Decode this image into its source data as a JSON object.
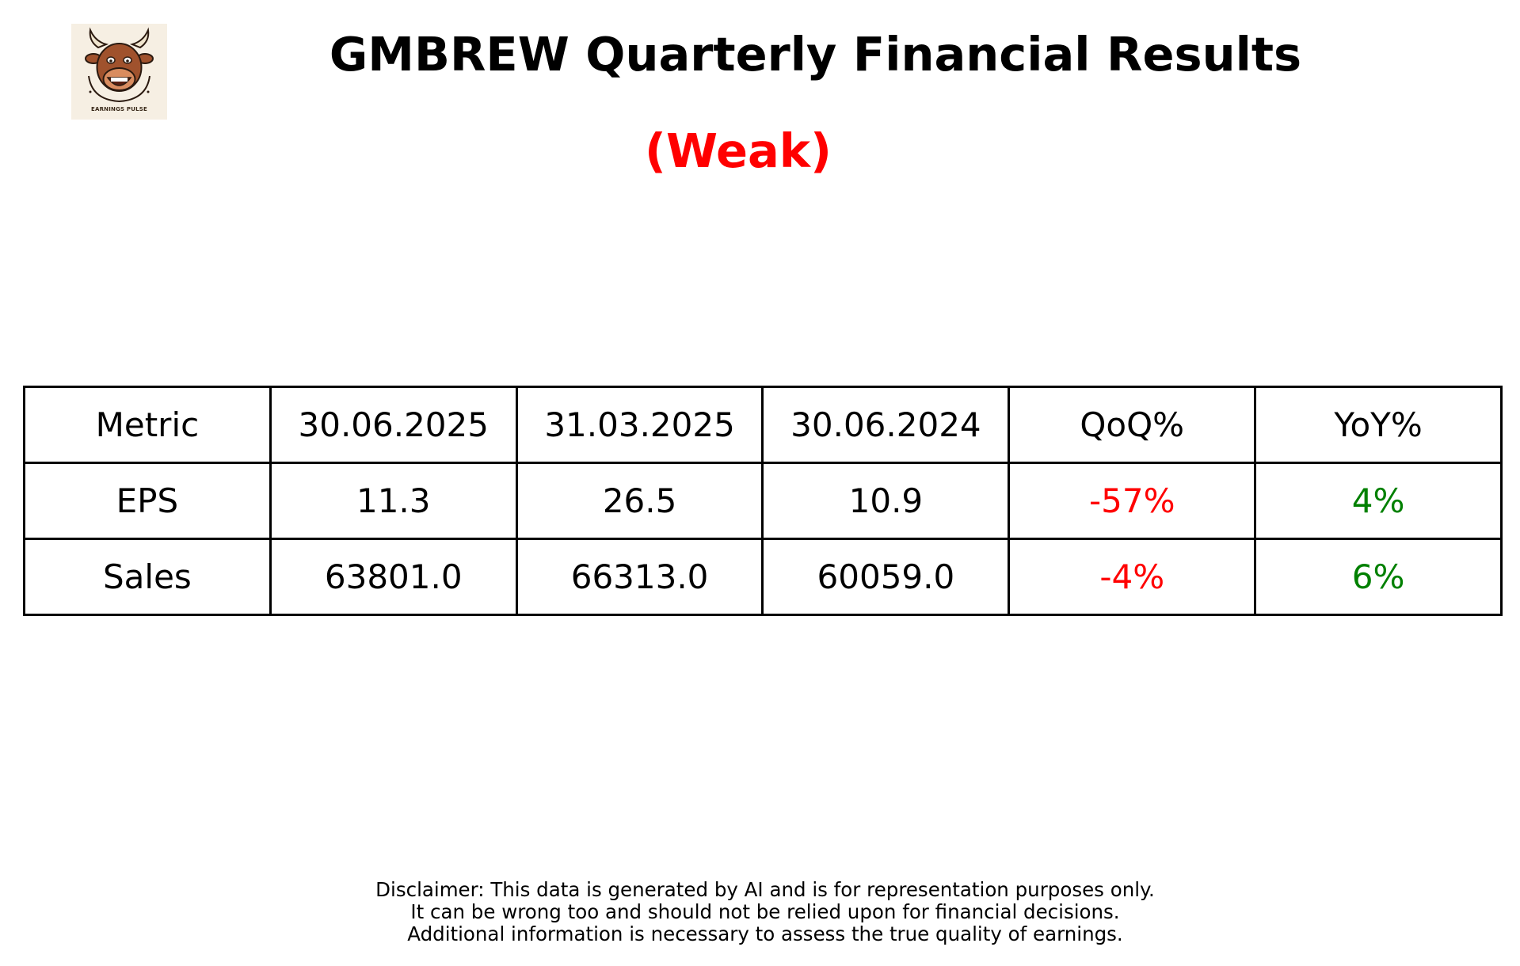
{
  "logo": {
    "caption": "EARNINGS PULSE",
    "colors": {
      "background": "#f6efe3",
      "head": "#a0522d",
      "horn": "#f1e6cf",
      "outline": "#2b1a10"
    }
  },
  "title": "GMBREW Quarterly Financial Results",
  "rating": {
    "label": "(Weak)",
    "color": "#ff0000"
  },
  "chart_data": {
    "type": "table",
    "columns": [
      "Metric",
      "30.06.2025",
      "31.03.2025",
      "30.06.2024",
      "QoQ%",
      "YoY%"
    ],
    "rows": [
      {
        "metric": "EPS",
        "values": [
          "11.3",
          "26.5",
          "10.9"
        ],
        "qoq": "-57%",
        "yoy": "4%",
        "qoq_color": "#ff0000",
        "yoy_color": "#008000"
      },
      {
        "metric": "Sales",
        "values": [
          "63801.0",
          "66313.0",
          "60059.0"
        ],
        "qoq": "-4%",
        "yoy": "6%",
        "qoq_color": "#ff0000",
        "yoy_color": "#008000"
      }
    ]
  },
  "disclaimer": [
    "Disclaimer: This data is generated by AI and is for representation purposes only.",
    "It can be wrong too and should not be relied upon for financial decisions.",
    "Additional information is necessary to assess the true quality of earnings."
  ]
}
